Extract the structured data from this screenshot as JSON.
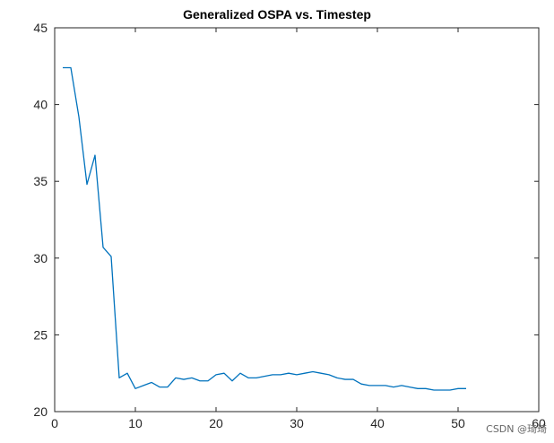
{
  "chart_data": {
    "type": "line",
    "title": "Generalized OSPA vs. Timestep",
    "xlabel": "",
    "ylabel": "",
    "xlim": [
      0,
      60
    ],
    "ylim": [
      20,
      45
    ],
    "xticks": [
      0,
      10,
      20,
      30,
      40,
      50,
      60
    ],
    "yticks": [
      20,
      25,
      30,
      35,
      40,
      45
    ],
    "grid": false,
    "series": [
      {
        "color": "#0072BD",
        "x": [
          1,
          2,
          3,
          4,
          5,
          6,
          7,
          8,
          9,
          10,
          11,
          12,
          13,
          14,
          15,
          16,
          17,
          18,
          19,
          20,
          21,
          22,
          23,
          24,
          25,
          26,
          27,
          28,
          29,
          30,
          31,
          32,
          33,
          34,
          35,
          36,
          37,
          38,
          39,
          40,
          41,
          42,
          43,
          44,
          45,
          46,
          47,
          48,
          49,
          50,
          51
        ],
        "y": [
          42.4,
          42.4,
          39.2,
          34.8,
          36.7,
          30.7,
          30.1,
          22.2,
          22.5,
          21.5,
          21.7,
          21.9,
          21.6,
          21.6,
          22.2,
          22.1,
          22.2,
          22.0,
          22.0,
          22.4,
          22.5,
          22.0,
          22.5,
          22.2,
          22.2,
          22.3,
          22.4,
          22.4,
          22.5,
          22.4,
          22.5,
          22.6,
          22.5,
          22.4,
          22.2,
          22.1,
          22.1,
          21.8,
          21.7,
          21.7,
          21.7,
          21.6,
          21.7,
          21.6,
          21.5,
          21.5,
          21.4,
          21.4,
          21.4,
          21.5,
          21.5
        ]
      }
    ]
  },
  "watermark": "CSDN @琦琦"
}
